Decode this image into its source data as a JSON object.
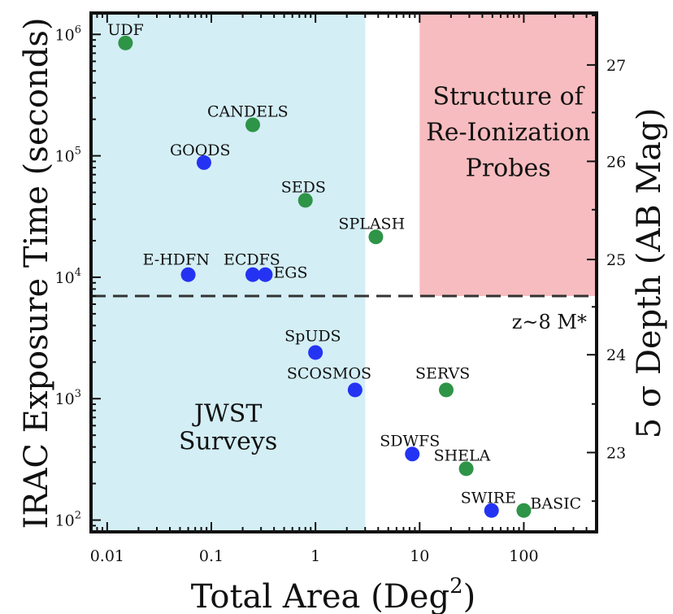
{
  "chart_data": {
    "type": "scatter",
    "xlabel": "Total Area (Deg",
    "xlabel_sup": "2",
    "xlabel_close": ")",
    "ylabel_left": "IRAC Exposure Time (seconds)",
    "ylabel_right": "5 σ Depth (AB Mag",
    "x_scale": "log",
    "y_scale": "log",
    "xlim": [
      0.007,
      500
    ],
    "ylim": [
      80,
      1500000
    ],
    "x_ticks": [
      {
        "value": 0.01,
        "label": "0.01"
      },
      {
        "value": 0.1,
        "label": "0.1"
      },
      {
        "value": 1,
        "label": "1"
      },
      {
        "value": 10,
        "label": "10"
      },
      {
        "value": 100,
        "label": "100"
      }
    ],
    "y_ticks": [
      {
        "value": 100,
        "base": "10",
        "exp": "2"
      },
      {
        "value": 1000,
        "base": "10",
        "exp": "3"
      },
      {
        "value": 10000,
        "base": "10",
        "exp": "4"
      },
      {
        "value": 100000,
        "base": "10",
        "exp": "5"
      },
      {
        "value": 1000000,
        "base": "10",
        "exp": "6"
      }
    ],
    "right_axis_ticks": [
      {
        "mag": 23,
        "label": "23",
        "y_equiv": 360
      },
      {
        "mag": 24,
        "label": "24",
        "y_equiv": 2300
      },
      {
        "mag": 25,
        "label": "25",
        "y_equiv": 14000
      },
      {
        "mag": 26,
        "label": "26",
        "y_equiv": 90000
      },
      {
        "mag": 27,
        "label": "27",
        "y_equiv": 560000
      }
    ],
    "regions": [
      {
        "label_lines": [
          "JWST",
          "Surveys"
        ],
        "color": "#d3eef5",
        "x_range": [
          0.007,
          3
        ],
        "y_range": [
          80,
          1500000
        ]
      },
      {
        "label_lines": [
          "Structure of",
          "Re-Ionization",
          "Probes"
        ],
        "color": "#f7bcbf",
        "x_range": [
          10,
          500
        ],
        "y_range": [
          7000,
          1500000
        ]
      }
    ],
    "reference_line": {
      "y": 7000,
      "label": "z~8 M*",
      "style": "dashed"
    },
    "colors": {
      "blue": "#2433f2",
      "green": "#2e9447"
    },
    "points": [
      {
        "name": "UDF",
        "x": 0.015,
        "y": 850000,
        "color": "green"
      },
      {
        "name": "CANDELS",
        "x": 0.25,
        "y": 180000,
        "color": "green"
      },
      {
        "name": "GOODS",
        "x": 0.085,
        "y": 88000,
        "color": "blue"
      },
      {
        "name": "SEDS",
        "x": 0.8,
        "y": 43000,
        "color": "green"
      },
      {
        "name": "SPLASH",
        "x": 3.8,
        "y": 21500,
        "color": "green"
      },
      {
        "name": "E-HDFN",
        "x": 0.06,
        "y": 10500,
        "color": "blue"
      },
      {
        "name": "ECDFS",
        "x": 0.25,
        "y": 10500,
        "color": "blue"
      },
      {
        "name": "EGS",
        "x": 0.33,
        "y": 10500,
        "color": "blue"
      },
      {
        "name": "SpUDS",
        "x": 1.0,
        "y": 2400,
        "color": "blue"
      },
      {
        "name": "SCOSMOS",
        "x": 2.4,
        "y": 1180,
        "color": "blue"
      },
      {
        "name": "SERVS",
        "x": 18,
        "y": 1180,
        "color": "green"
      },
      {
        "name": "SDWFS",
        "x": 8.5,
        "y": 350,
        "color": "blue"
      },
      {
        "name": "SHELA",
        "x": 28,
        "y": 265,
        "color": "green"
      },
      {
        "name": "SWIRE",
        "x": 49,
        "y": 120,
        "color": "blue"
      },
      {
        "name": "BASIC",
        "x": 100,
        "y": 120,
        "color": "green"
      }
    ]
  }
}
